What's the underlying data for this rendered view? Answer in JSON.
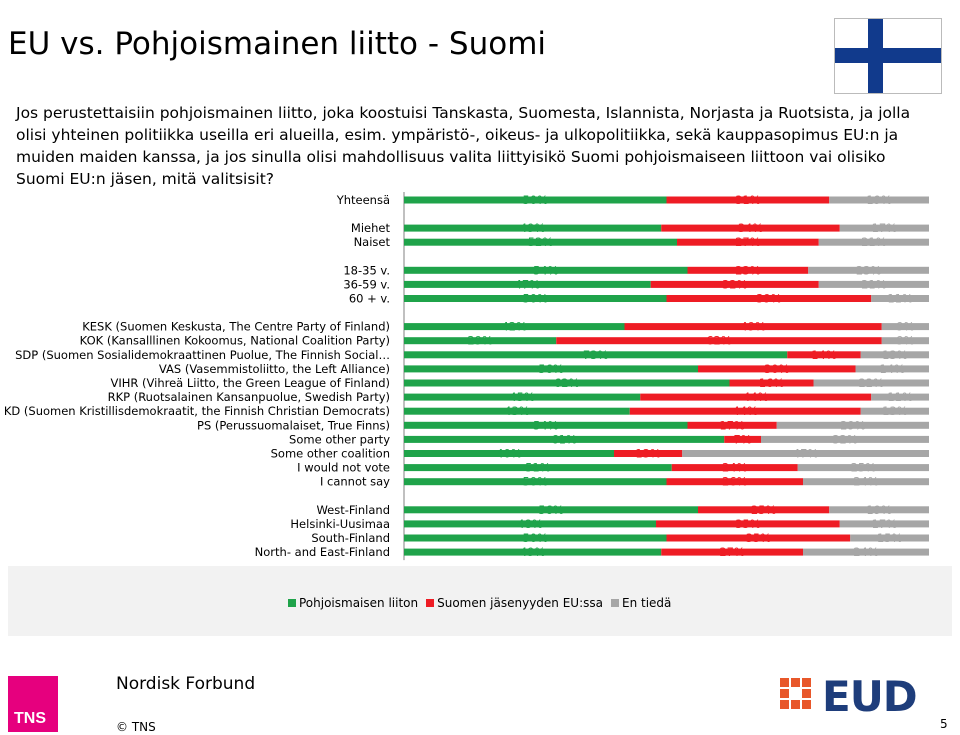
{
  "slide": {
    "title": "EU vs. Pohjoismainen liitto - Suomi",
    "question": "Jos perustettaisiin pohjoismainen liitto, joka koostuisi Tanskasta, Suomesta, Islannista, Norjasta ja Ruotsista, ja jolla olisi yhteinen politiikka useilla eri alueilla, esim. ympäristö-, oikeus- ja ulkopolitiikka, sekä kauppasopimus EU:n ja muiden maiden kanssa, ja jos sinulla olisi mahdollisuus valita liittyisikö Suomi pohjoismaiseen liittoon vai olisiko Suomi EU:n jäsen, mitä valitsisit?",
    "flag_colors": {
      "background": "#ffffff",
      "cross": "#113a8c"
    },
    "footer_name": "Nordisk Forbund",
    "copyright": "© TNS",
    "page_number": "5",
    "tns_logo_text": "TNS",
    "eud_logo_text": "EUD"
  },
  "chart_data": {
    "type": "bar",
    "orientation": "horizontal-stacked-100",
    "series": [
      {
        "name": "Pohjoismaisen liiton",
        "color": "#1fa34a"
      },
      {
        "name": "Suomen jäsenyyden EU:ssa",
        "color": "#ee1c24"
      },
      {
        "name": "En tiedä",
        "color": "#a6a6a6"
      }
    ],
    "groups": [
      [
        {
          "label": "Yhteensä",
          "values": [
            50,
            31,
            19
          ]
        }
      ],
      [
        {
          "label": "Miehet",
          "values": [
            49,
            34,
            17
          ]
        },
        {
          "label": "Naiset",
          "values": [
            52,
            27,
            21
          ]
        }
      ],
      [
        {
          "label": "18-35 v.",
          "values": [
            54,
            23,
            23
          ]
        },
        {
          "label": "36-59 v.",
          "values": [
            47,
            32,
            21
          ]
        },
        {
          "label": "60 + v.",
          "values": [
            50,
            39,
            11
          ]
        }
      ],
      [
        {
          "label": "KESK (Suomen Keskusta, The Centre Party of Finland)",
          "values": [
            42,
            49,
            9
          ]
        },
        {
          "label": "KOK (Kansalllinen Kokoomus, National Coalition Party)",
          "values": [
            29,
            62,
            9
          ]
        },
        {
          "label": "SDP (Suomen Sosialidemokraattinen Puolue, The Finnish Social…",
          "values": [
            73,
            14,
            13
          ]
        },
        {
          "label": "VAS (Vasemmistoliitto, the Left Alliance)",
          "values": [
            56,
            30,
            14
          ]
        },
        {
          "label": "VIHR (Vihreä Liitto, the Green League of Finland)",
          "values": [
            62,
            16,
            22
          ]
        },
        {
          "label": "RKP (Ruotsalainen Kansanpuolue, Swedish Party)",
          "values": [
            45,
            44,
            11
          ]
        },
        {
          "label": "KD (Suomen Kristillisdemokraatit, the Finnish Christian Democrats)",
          "values": [
            43,
            44,
            13
          ]
        },
        {
          "label": "PS (Perussuomalaiset, True Finns)",
          "values": [
            54,
            17,
            29
          ]
        },
        {
          "label": "Some other party",
          "values": [
            61,
            7,
            32
          ]
        },
        {
          "label": "Some other coalition",
          "values": [
            40,
            13,
            47
          ]
        },
        {
          "label": "I would not vote",
          "values": [
            51,
            24,
            25
          ]
        },
        {
          "label": "I cannot say",
          "values": [
            50,
            26,
            24
          ]
        }
      ],
      [
        {
          "label": "West-Finland",
          "values": [
            56,
            25,
            19
          ]
        },
        {
          "label": "Helsinki-Uusimaa",
          "values": [
            48,
            35,
            17
          ]
        },
        {
          "label": "South-Finland",
          "values": [
            50,
            35,
            15
          ]
        },
        {
          "label": "North- and East-Finland",
          "values": [
            49,
            27,
            24
          ]
        }
      ]
    ],
    "value_suffix": "%",
    "xlim": [
      0,
      100
    ],
    "legend_position": "bottom"
  }
}
